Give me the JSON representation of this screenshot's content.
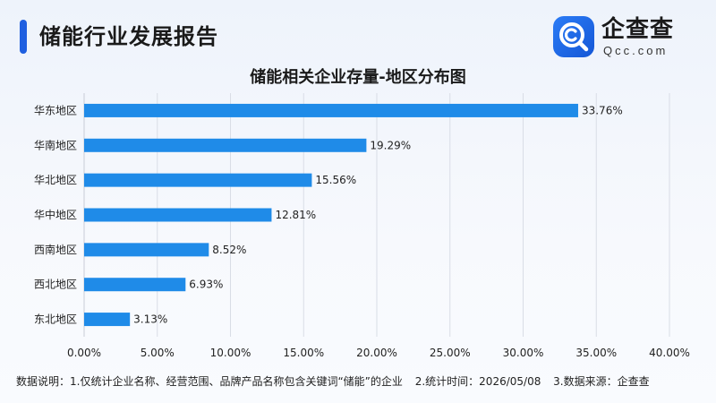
{
  "header": {
    "title": "储能行业发展报告"
  },
  "logo": {
    "name": "企查查",
    "domain": "Qcc.com",
    "icon": "magnifier-c-logo-icon",
    "brand_color": "#1f6ae8"
  },
  "chart_data": {
    "type": "bar",
    "orientation": "horizontal",
    "title": "储能相关企业存量-地区分布图",
    "categories": [
      "华东地区",
      "华南地区",
      "华北地区",
      "华中地区",
      "西南地区",
      "西北地区",
      "东北地区"
    ],
    "values": [
      33.76,
      19.29,
      15.56,
      12.81,
      8.52,
      6.93,
      3.13
    ],
    "value_labels": [
      "33.76%",
      "19.29%",
      "15.56%",
      "12.81%",
      "8.52%",
      "6.93%",
      "3.13%"
    ],
    "x_ticks": [
      0,
      5,
      10,
      15,
      20,
      25,
      30,
      35,
      40
    ],
    "x_tick_labels": [
      "0.00%",
      "5.00%",
      "10.00%",
      "15.00%",
      "20.00%",
      "25.00%",
      "30.00%",
      "35.00%",
      "40.00%"
    ],
    "xlim": [
      0,
      40
    ],
    "xlabel": "",
    "ylabel": "",
    "grid": "vertical",
    "bar_color": "#1f8be8"
  },
  "footnote": {
    "items": [
      "数据说明：1.仅统计企业名称、经营范围、品牌产品名称包含关键词“储能”的企业",
      "2.统计时间：2026/05/08",
      "3.数据来源：企查查"
    ]
  }
}
